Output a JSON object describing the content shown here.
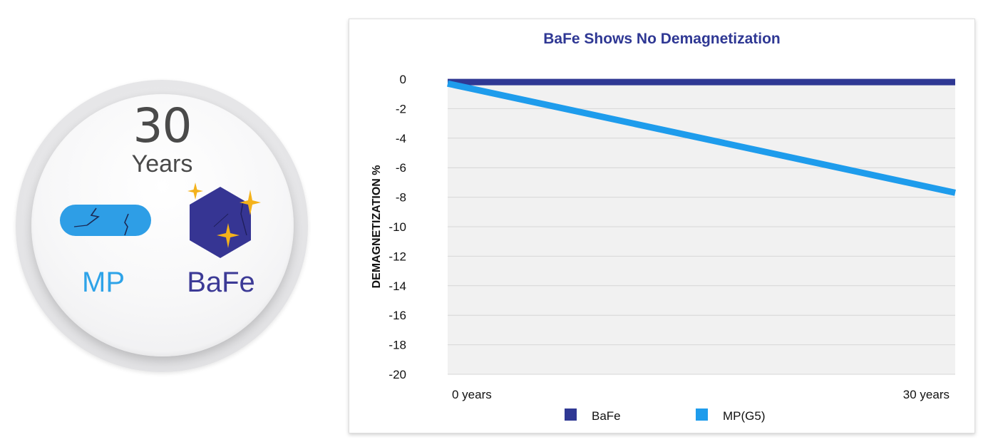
{
  "badge": {
    "number": "30",
    "label": "Years",
    "left_label": "MP",
    "right_label": "BaFe"
  },
  "colors": {
    "bafe": "#2f3894",
    "mp": "#1e9cec",
    "title": "#2f3894",
    "grid": "#d6d6d6",
    "plot_bg": "#f1f1f1"
  },
  "chart_data": {
    "type": "line",
    "title": "BaFe Shows No Demagnetization",
    "ylabel": "DEMAGNETIZATION %",
    "xlabel": "",
    "categories": [
      "0 years",
      "30 years"
    ],
    "ylim": [
      -20,
      0
    ],
    "yticks": [
      0,
      -2,
      -4,
      -6,
      -8,
      -10,
      -12,
      -14,
      -16,
      -18,
      -20
    ],
    "grid": true,
    "legend_position": "bottom",
    "series": [
      {
        "name": "BaFe",
        "color": "#2f3894",
        "values": [
          -0.2,
          -0.2
        ]
      },
      {
        "name": "MP(G5)",
        "color": "#1e9cec",
        "values": [
          -0.3,
          -7.7
        ]
      }
    ]
  }
}
